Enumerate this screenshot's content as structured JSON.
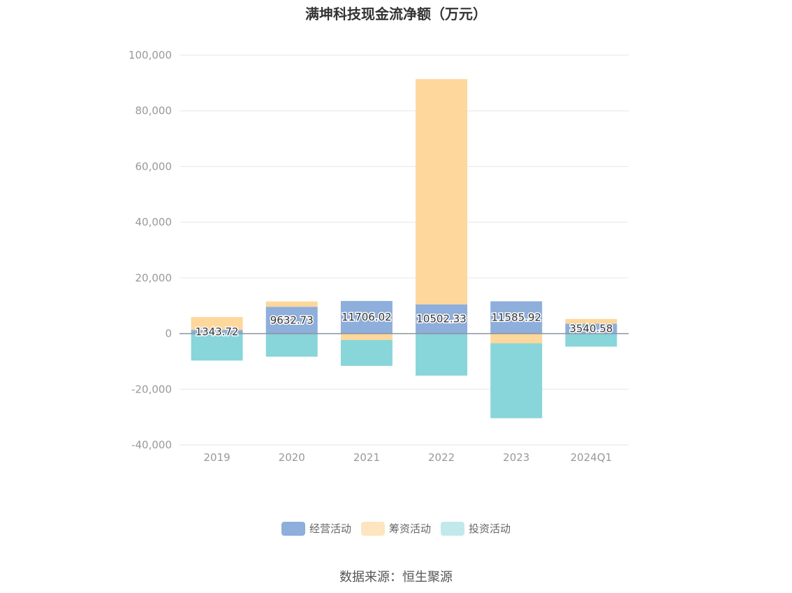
{
  "chart_data": {
    "type": "bar",
    "stacked": true,
    "title": "满坤科技现金流净额（万元）",
    "categories": [
      "2019",
      "2020",
      "2021",
      "2022",
      "2023",
      "2024Q1"
    ],
    "ylim": [
      -40000,
      100000
    ],
    "yticks": [
      100000,
      80000,
      60000,
      40000,
      20000,
      0,
      -20000,
      -40000
    ],
    "ytick_labels": [
      "100,000",
      "80,000",
      "60,000",
      "40,000",
      "20,000",
      "0",
      "-20,000",
      "-40,000"
    ],
    "grid": true,
    "legend_position": "bottom",
    "series": [
      {
        "name": "经营活动",
        "color": "#8EAEDB",
        "values": [
          1343.72,
          9632.73,
          11706.02,
          10502.33,
          11585.92,
          3540.58
        ],
        "show_labels": true
      },
      {
        "name": "筹资活动",
        "color": "#FDD79B",
        "values": [
          4600,
          1900,
          -2300,
          80900,
          -3500,
          1700
        ],
        "show_labels": false
      },
      {
        "name": "投资活动",
        "color": "#88D5DA",
        "values": [
          -9700,
          -8300,
          -9300,
          -15100,
          -26900,
          -4700
        ],
        "show_labels": false
      }
    ],
    "value_labels": [
      "1343.72",
      "9632.73",
      "11706.02",
      "10502.33",
      "11585.92",
      "3540.58"
    ]
  },
  "legend": {
    "items": [
      {
        "label": "经营活动",
        "color": "#8EAEDB"
      },
      {
        "label": "筹资活动",
        "color": "#FEE5C0"
      },
      {
        "label": "投资活动",
        "color": "#C1E9EC"
      }
    ]
  },
  "source": "数据来源：恒生聚源"
}
